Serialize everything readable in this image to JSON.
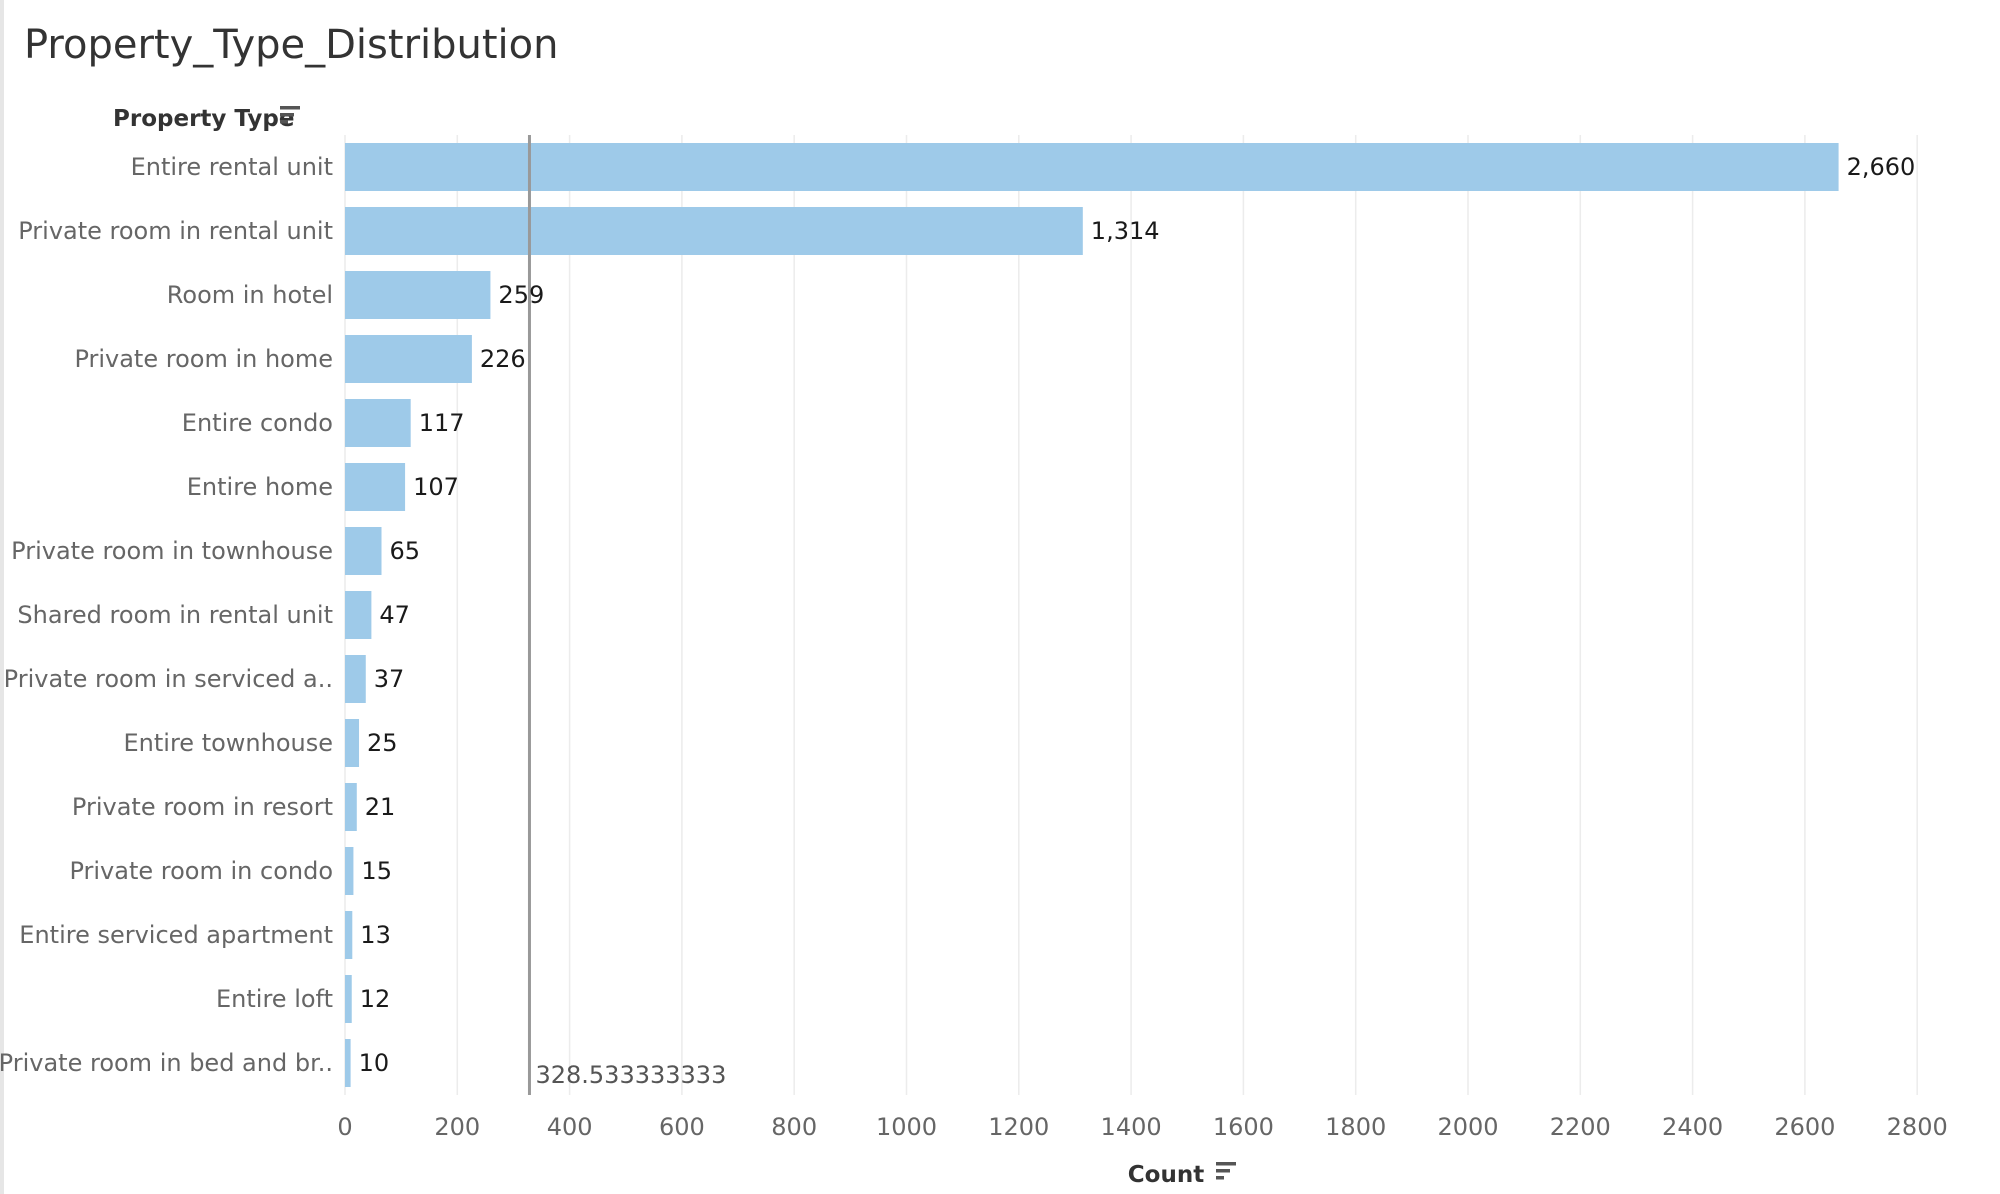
{
  "title": "Property_Type_Distribution",
  "chart_data": {
    "type": "bar",
    "orientation": "horizontal",
    "categories": [
      "Entire rental unit",
      "Private room in rental unit",
      "Room in hotel",
      "Private room in home",
      "Entire condo",
      "Entire home",
      "Private room in townhouse",
      "Shared room in rental unit",
      "Private room in serviced a..",
      "Entire townhouse",
      "Private room in resort",
      "Private room in condo",
      "Entire serviced apartment",
      "Entire loft",
      "Private room in bed and br.."
    ],
    "values": [
      2660,
      1314,
      259,
      226,
      117,
      107,
      65,
      47,
      37,
      25,
      21,
      15,
      13,
      12,
      10
    ],
    "value_labels": [
      "2,660",
      "1,314",
      "259",
      "226",
      "117",
      "107",
      "65",
      "47",
      "37",
      "25",
      "21",
      "15",
      "13",
      "12",
      "10"
    ],
    "ylabel": "Property Type",
    "xlabel": "Count",
    "xlim": [
      0,
      2850
    ],
    "xticks": [
      0,
      200,
      400,
      600,
      800,
      1000,
      1200,
      1400,
      1600,
      1800,
      2000,
      2200,
      2400,
      2600,
      2800
    ],
    "reference_line": {
      "value": 328.533333333,
      "label": "328.533333333"
    },
    "grid": true,
    "legend": "none",
    "colors": {
      "bar": "#9ecae9",
      "reference_line": "#999999",
      "grid": "#ececec"
    }
  }
}
